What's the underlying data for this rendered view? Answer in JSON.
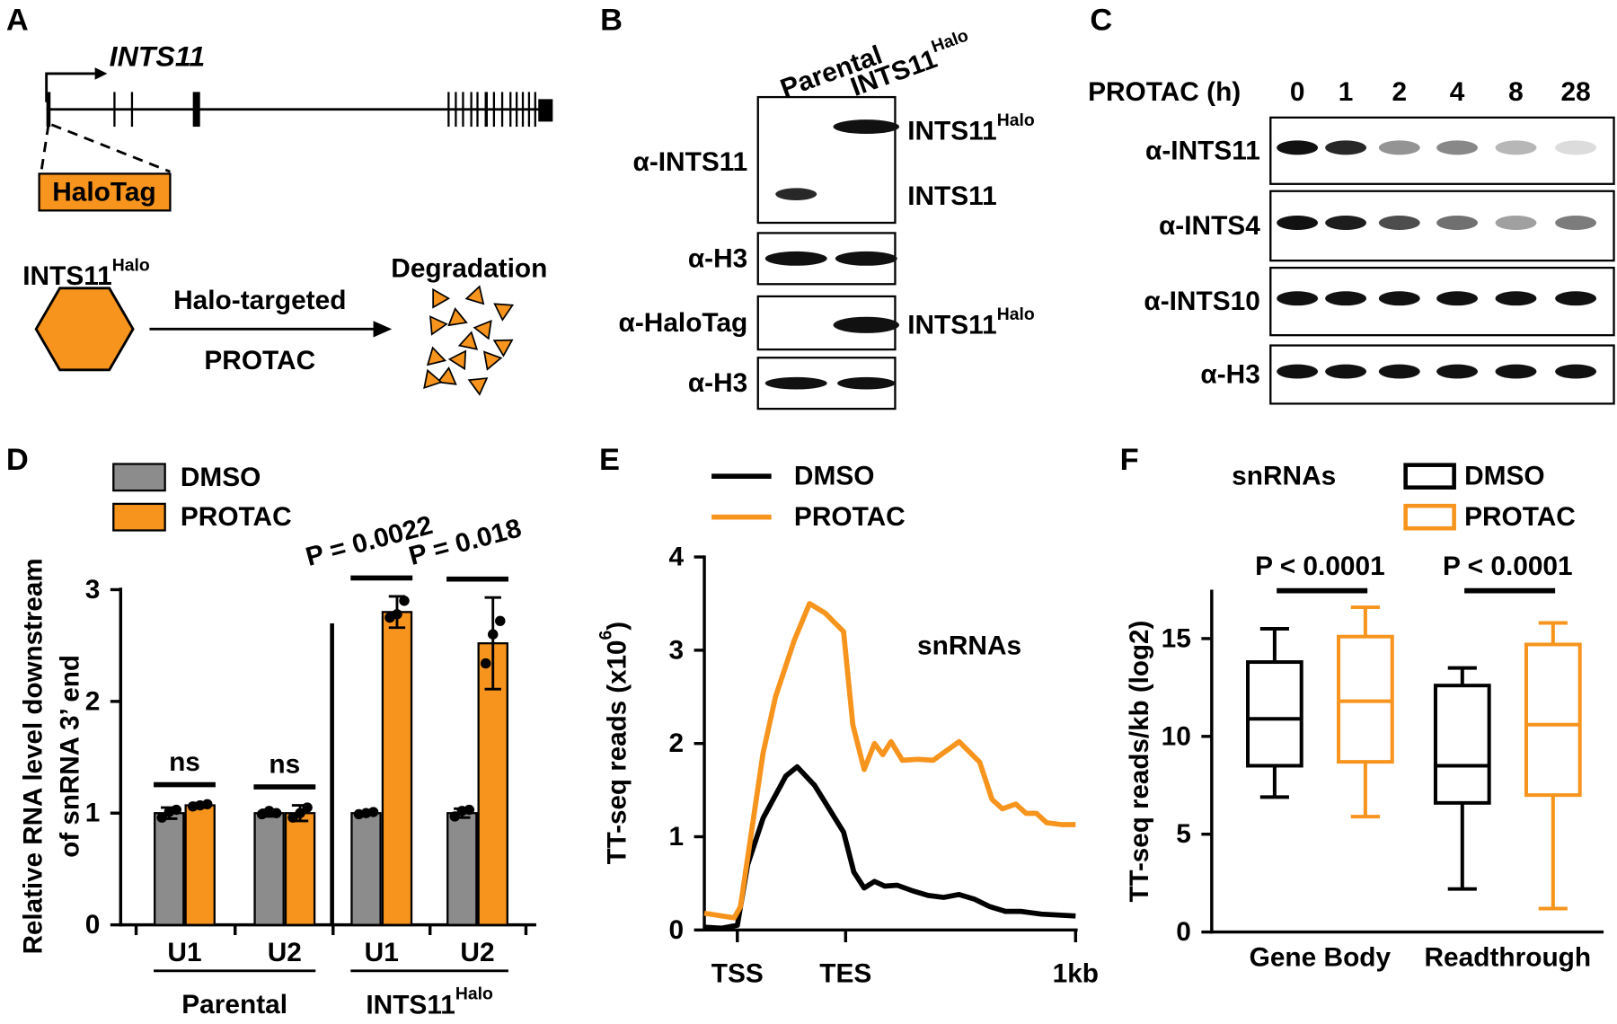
{
  "panel_labels": [
    "A",
    "B",
    "C"
  ],
  "panel_a": {
    "gene": "INTS11",
    "tag": "HaloTag",
    "protein": {
      "base": "INTS11",
      "sup": "Halo"
    },
    "outcome": "Degradation",
    "arrow_top": "Halo-targeted",
    "arrow_bottom": "PROTAC"
  },
  "panel_b": {
    "lanes": [
      "Parental",
      {
        "base": "INTS11",
        "sup": "Halo"
      }
    ],
    "blots": [
      "α-INTS11",
      "α-H3",
      "α-HaloTag",
      "α-H3"
    ],
    "bands": [
      {
        "base": "INTS11",
        "sup": "Halo"
      },
      "INTS11",
      {
        "base": "INTS11",
        "sup": "Halo"
      }
    ]
  },
  "panel_c": {
    "header": "PROTAC (h)",
    "lanes": [
      "0",
      "1",
      "2",
      "4",
      "8",
      "28"
    ],
    "blots": [
      "α-INTS11",
      "α-INTS4",
      "α-INTS10",
      "α-H3"
    ]
  },
  "chart_data": [
    {
      "type": "bar",
      "panel": "D",
      "ylabel": [
        "Relative RNA level downstream",
        "of snRNA  3’ end"
      ],
      "categories": [
        "U1",
        "U2",
        "U1",
        "U2"
      ],
      "groups": [
        "Parental",
        {
          "base": "INTS11",
          "sup": "Halo"
        }
      ],
      "series": [
        {
          "name": "DMSO",
          "color": "#8c8c8c",
          "values": [
            1.0,
            1.0,
            1.0,
            1.0
          ],
          "errors": [
            0.05,
            0.03,
            0.01,
            0.04
          ],
          "points": [
            [
              0.96,
              1.01,
              1.03
            ],
            [
              0.99,
              1.02,
              1.0
            ],
            [
              0.99,
              1.0,
              1.01
            ],
            [
              0.97,
              1.02,
              1.03
            ]
          ]
        },
        {
          "name": "PROTAC",
          "color": "#f7941d",
          "values": [
            1.07,
            1.0,
            2.8,
            2.52
          ],
          "errors": [
            0.02,
            0.07,
            0.14,
            0.41
          ],
          "points": [
            [
              1.06,
              1.07,
              1.08
            ],
            [
              0.96,
              1.0,
              1.05
            ],
            [
              2.75,
              2.78,
              2.9
            ],
            [
              2.34,
              2.6,
              2.72
            ]
          ]
        }
      ],
      "annotations": [
        "ns",
        "ns",
        "P = 0.0022",
        "P = 0.018"
      ],
      "ylim": [
        0,
        3
      ],
      "yticks": [
        0,
        1,
        2,
        3
      ]
    },
    {
      "type": "line",
      "panel": "E",
      "ylabel": {
        "base": "TT-seq reads (x10",
        "sup": "6",
        "tail": ")"
      },
      "annotation": "snRNAs",
      "xlim": [
        0,
        362
      ],
      "xticks": [
        {
          "value": 32,
          "label": "TSS"
        },
        {
          "value": 137,
          "label": "TES"
        },
        {
          "value": 360,
          "label": "1kb"
        }
      ],
      "ylim": [
        0,
        4
      ],
      "yticks": [
        0,
        1,
        2,
        3,
        4
      ],
      "series": [
        {
          "name": "DMSO",
          "color": "#000000",
          "x": [
            0,
            17,
            32,
            42,
            57,
            79,
            90,
            107,
            135,
            145,
            155,
            165,
            175,
            187,
            202,
            217,
            232,
            247,
            262,
            277,
            292,
            307,
            327,
            360
          ],
          "values": [
            0.03,
            0.02,
            0.05,
            0.7,
            1.2,
            1.65,
            1.75,
            1.55,
            1.05,
            0.62,
            0.45,
            0.52,
            0.47,
            0.48,
            0.42,
            0.37,
            0.35,
            0.38,
            0.33,
            0.25,
            0.2,
            0.2,
            0.17,
            0.15
          ]
        },
        {
          "name": "PROTAC",
          "color": "#f7941d",
          "x": [
            0,
            17,
            29,
            35,
            45,
            57,
            69,
            87,
            102,
            117,
            135,
            144,
            155,
            165,
            173,
            181,
            192,
            207,
            222,
            247,
            267,
            279,
            289,
            302,
            312,
            322,
            332,
            347,
            360
          ],
          "values": [
            0.18,
            0.15,
            0.13,
            0.25,
            1.0,
            1.9,
            2.5,
            3.1,
            3.5,
            3.4,
            3.2,
            2.2,
            1.72,
            2.0,
            1.88,
            2.02,
            1.82,
            1.83,
            1.82,
            2.02,
            1.8,
            1.4,
            1.3,
            1.35,
            1.25,
            1.25,
            1.15,
            1.13,
            1.13
          ]
        }
      ]
    },
    {
      "type": "box",
      "panel": "F",
      "ylabel": "TT-seq reads/kb (log2)",
      "annotation": "snRNAs",
      "categories": [
        "Gene Body",
        "Readthrough"
      ],
      "series": [
        {
          "name": "DMSO",
          "color": "#000000",
          "min": [
            6.9,
            2.2
          ],
          "q1": [
            8.5,
            6.6
          ],
          "median": [
            10.9,
            8.5
          ],
          "q3": [
            13.8,
            12.6
          ],
          "max": [
            15.5,
            13.5
          ]
        },
        {
          "name": "PROTAC",
          "color": "#f7941d",
          "min": [
            5.9,
            1.2
          ],
          "q1": [
            8.7,
            7.0
          ],
          "median": [
            11.8,
            10.6
          ],
          "q3": [
            15.1,
            14.7
          ],
          "max": [
            16.6,
            15.8
          ]
        }
      ],
      "annotations": [
        "P < 0.0001",
        "P < 0.0001"
      ],
      "ylim": [
        0,
        17.5
      ],
      "yticks": [
        0,
        5,
        10,
        15
      ]
    }
  ]
}
